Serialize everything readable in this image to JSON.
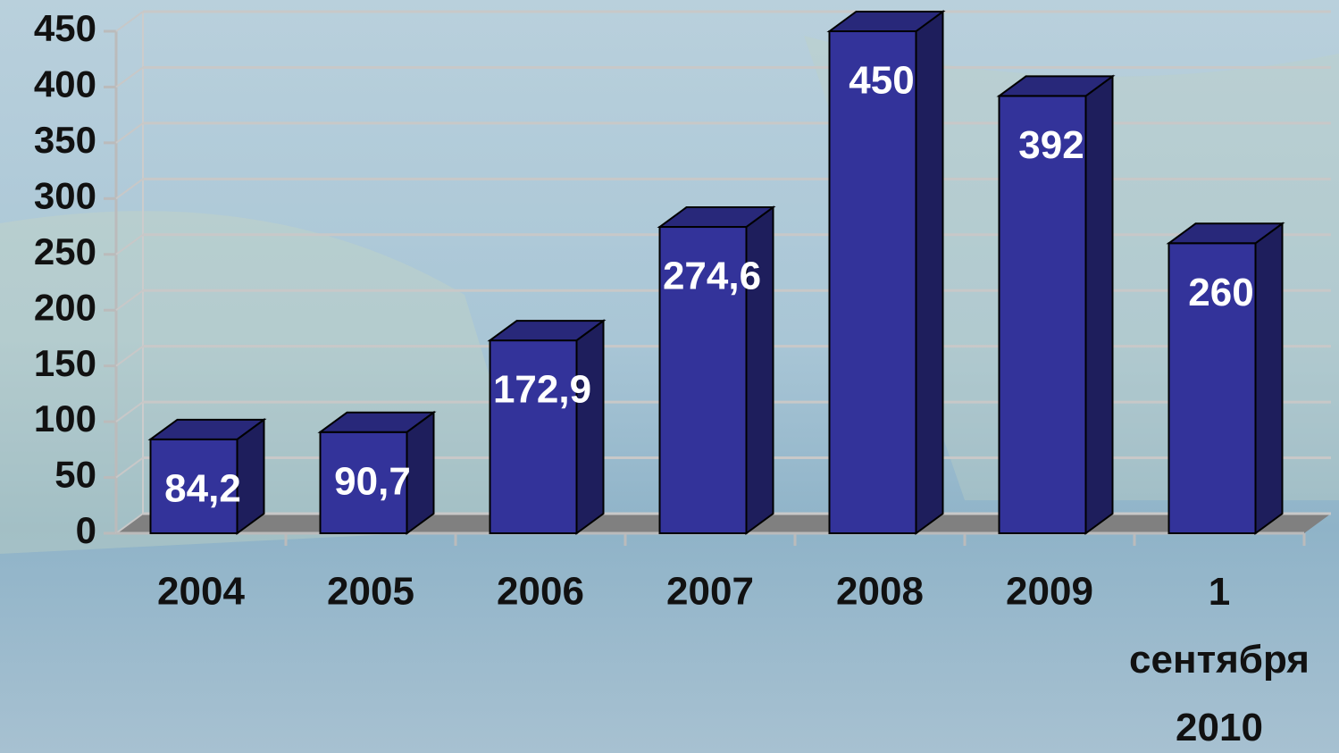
{
  "chart_data": {
    "type": "bar3d",
    "categories": [
      "2004",
      "2005",
      "2006",
      "2007",
      "2008",
      "2009",
      "1 сентября 2010"
    ],
    "values": [
      84.2,
      90.7,
      172.9,
      274.6,
      450,
      392,
      260
    ],
    "value_labels": [
      "84,2",
      "90,7",
      "172,9",
      "274,6",
      "450",
      "392",
      "260"
    ],
    "color": "#33339a",
    "ylim": [
      0,
      450
    ],
    "yticks": [
      0,
      50,
      100,
      150,
      200,
      250,
      300,
      350,
      400,
      450
    ],
    "grid": true
  }
}
